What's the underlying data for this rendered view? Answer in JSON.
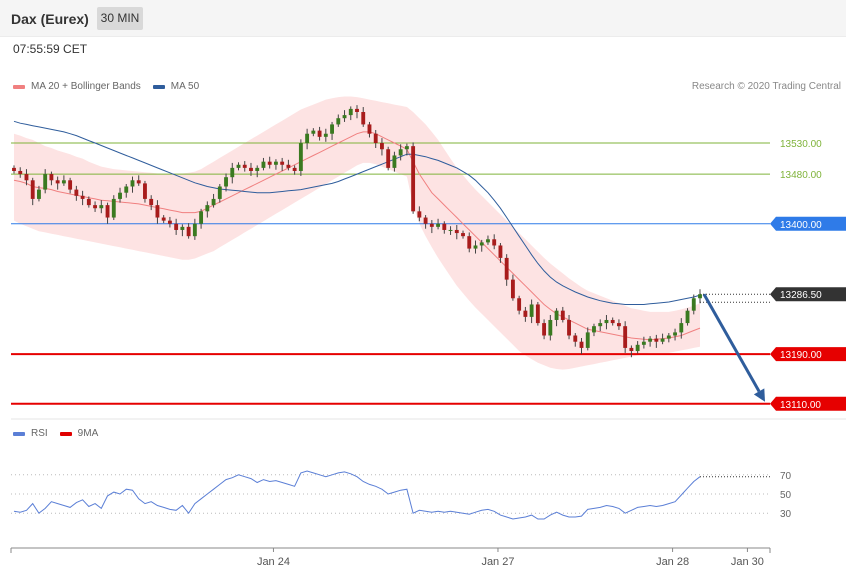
{
  "header": {
    "title": "Dax (Eurex)",
    "timeframe": "30 MIN"
  },
  "timestamp": "07:55:59 CET",
  "legend": {
    "price": [
      {
        "label": "MA 20 + Bollinger Bands",
        "color": "#f08080"
      },
      {
        "label": "MA 50",
        "color": "#2f5d9c"
      }
    ],
    "rsi": [
      {
        "label": "RSI",
        "color": "#5b7fd6"
      },
      {
        "label": "9MA",
        "color": "#e00000"
      }
    ]
  },
  "copyright": "Research © 2020 Trading Central",
  "chart_data": {
    "type": "candlestick",
    "price_range": [
      13100,
      13580
    ],
    "levels": [
      {
        "value": 13530.0,
        "label": "13530.00",
        "kind": "resistance",
        "color": "#7fb33a"
      },
      {
        "value": 13480.0,
        "label": "13480.00",
        "kind": "resistance",
        "color": "#7fb33a"
      },
      {
        "value": 13400.0,
        "label": "13400.00",
        "kind": "pivot",
        "color": "#2f7be8"
      },
      {
        "value": 13286.5,
        "label": "13286.50",
        "kind": "last-price",
        "color": "#333333"
      },
      {
        "value": 13190.0,
        "label": "13190.00",
        "kind": "support",
        "color": "#e60000"
      },
      {
        "value": 13110.0,
        "label": "13110.00",
        "kind": "support",
        "color": "#e60000"
      }
    ],
    "closes": [
      13485,
      13480,
      13470,
      13440,
      13455,
      13480,
      13470,
      13465,
      13470,
      13455,
      13445,
      13440,
      13430,
      13425,
      13430,
      13410,
      13440,
      13450,
      13460,
      13470,
      13465,
      13440,
      13430,
      13410,
      13405,
      13400,
      13390,
      13395,
      13380,
      13400,
      13420,
      13430,
      13440,
      13460,
      13475,
      13490,
      13495,
      13490,
      13485,
      13490,
      13500,
      13495,
      13500,
      13495,
      13490,
      13485,
      13530,
      13545,
      13550,
      13540,
      13545,
      13560,
      13570,
      13575,
      13585,
      13580,
      13560,
      13545,
      13530,
      13520,
      13490,
      13510,
      13520,
      13525,
      13420,
      13410,
      13400,
      13395,
      13400,
      13390,
      13390,
      13385,
      13380,
      13360,
      13365,
      13370,
      13375,
      13365,
      13345,
      13310,
      13280,
      13260,
      13250,
      13270,
      13240,
      13220,
      13245,
      13260,
      13245,
      13220,
      13210,
      13200,
      13225,
      13235,
      13240,
      13245,
      13240,
      13235,
      13200,
      13195,
      13205,
      13210,
      13215,
      13210,
      13215,
      13220,
      13225,
      13240,
      13260,
      13280,
      13286.5
    ],
    "ma20": [
      13470,
      13468,
      13465,
      13460,
      13458,
      13457,
      13455,
      13452,
      13450,
      13448,
      13446,
      13444,
      13442,
      13440,
      13438,
      13437,
      13436,
      13435,
      13434,
      13433,
      13432,
      13430,
      13428,
      13426,
      13424,
      13422,
      13420,
      13418,
      13418,
      13418,
      13420,
      13425,
      13430,
      13435,
      13440,
      13445,
      13450,
      13455,
      13460,
      13465,
      13470,
      13475,
      13480,
      13485,
      13490,
      13495,
      13500,
      13505,
      13510,
      13515,
      13520,
      13525,
      13530,
      13535,
      13540,
      13545,
      13548,
      13548,
      13545,
      13540,
      13535,
      13530,
      13525,
      13520,
      13500,
      13480,
      13465,
      13450,
      13440,
      13430,
      13420,
      13410,
      13400,
      13390,
      13380,
      13370,
      13360,
      13350,
      13340,
      13330,
      13320,
      13310,
      13300,
      13290,
      13280,
      13270,
      13262,
      13255,
      13250,
      13245,
      13240,
      13235,
      13230,
      13228,
      13226,
      13224,
      13222,
      13220,
      13218,
      13216,
      13215,
      13214,
      13213,
      13214,
      13215,
      13216,
      13218,
      13220,
      13224,
      13228,
      13232
    ],
    "bb_upper": [
      13545,
      13542,
      13538,
      13535,
      13530,
      13525,
      13522,
      13518,
      13515,
      13512,
      13508,
      13505,
      13500,
      13496,
      13492,
      13490,
      13488,
      13487,
      13486,
      13485,
      13484,
      13483,
      13482,
      13481,
      13480,
      13480,
      13480,
      13481,
      13482,
      13484,
      13488,
      13494,
      13500,
      13506,
      13512,
      13518,
      13524,
      13530,
      13536,
      13542,
      13548,
      13554,
      13560,
      13566,
      13572,
      13578,
      13584,
      13588,
      13592,
      13596,
      13600,
      13602,
      13604,
      13605,
      13605,
      13604,
      13602,
      13600,
      13598,
      13596,
      13594,
      13592,
      13590,
      13588,
      13580,
      13570,
      13560,
      13548,
      13535,
      13520,
      13505,
      13490,
      13478,
      13466,
      13455,
      13445,
      13435,
      13425,
      13415,
      13405,
      13395,
      13385,
      13375,
      13365,
      13355,
      13345,
      13336,
      13328,
      13320,
      13312,
      13305,
      13298,
      13292,
      13288,
      13284,
      13280,
      13276,
      13272,
      13268,
      13264,
      13262,
      13260,
      13258,
      13258,
      13258,
      13258,
      13260,
      13262,
      13265,
      13268,
      13272
    ],
    "bb_lower": [
      13405,
      13400,
      13396,
      13392,
      13388,
      13386,
      13384,
      13382,
      13380,
      13378,
      13376,
      13374,
      13372,
      13370,
      13368,
      13366,
      13364,
      13362,
      13360,
      13358,
      13356,
      13354,
      13352,
      13350,
      13348,
      13346,
      13344,
      13342,
      13342,
      13344,
      13348,
      13352,
      13356,
      13362,
      13368,
      13374,
      13380,
      13386,
      13392,
      13398,
      13404,
      13410,
      13416,
      13422,
      13428,
      13434,
      13440,
      13446,
      13452,
      13458,
      13464,
      13470,
      13476,
      13482,
      13488,
      13494,
      13498,
      13498,
      13496,
      13492,
      13488,
      13484,
      13480,
      13476,
      13430,
      13400,
      13380,
      13362,
      13345,
      13330,
      13315,
      13300,
      13288,
      13276,
      13265,
      13255,
      13245,
      13235,
      13225,
      13215,
      13205,
      13195,
      13188,
      13182,
      13176,
      13172,
      13168,
      13166,
      13165,
      13166,
      13168,
      13170,
      13172,
      13174,
      13176,
      13178,
      13180,
      13182,
      13184,
      13186,
      13188,
      13190,
      13192,
      13192,
      13192,
      13192,
      13194,
      13196,
      13198,
      13200,
      13202
    ],
    "ma50": [
      13565,
      13562,
      13560,
      13558,
      13556,
      13554,
      13552,
      13550,
      13548,
      13545,
      13542,
      13538,
      13534,
      13530,
      13526,
      13522,
      13518,
      13514,
      13510,
      13506,
      13502,
      13498,
      13494,
      13490,
      13486,
      13482,
      13478,
      13474,
      13470,
      13466,
      13463,
      13460,
      13458,
      13456,
      13455,
      13454,
      13453,
      13452,
      13451,
      13450,
      13450,
      13450,
      13451,
      13452,
      13453,
      13454,
      13455,
      13457,
      13459,
      13461,
      13463,
      13465,
      13468,
      13472,
      13476,
      13480,
      13484,
      13488,
      13492,
      13496,
      13500,
      13504,
      13508,
      13512,
      13512,
      13510,
      13508,
      13505,
      13502,
      13498,
      13494,
      13490,
      13484,
      13478,
      13470,
      13460,
      13450,
      13438,
      13425,
      13410,
      13395,
      13380,
      13365,
      13350,
      13336,
      13324,
      13314,
      13306,
      13300,
      13295,
      13290,
      13286,
      13282,
      13279,
      13276,
      13274,
      13272,
      13271,
      13270,
      13270,
      13270,
      13270,
      13271,
      13272,
      13273,
      13274,
      13276,
      13278,
      13280,
      13282,
      13285
    ],
    "rsi_range": [
      0,
      100
    ],
    "rsi_levels": [
      70,
      50,
      30
    ],
    "rsi": [
      32,
      31,
      33,
      40,
      30,
      35,
      42,
      40,
      38,
      36,
      41,
      44,
      37,
      40,
      35,
      48,
      52,
      50,
      55,
      54,
      45,
      40,
      42,
      38,
      36,
      34,
      33,
      38,
      30,
      40,
      45,
      50,
      55,
      60,
      65,
      67,
      70,
      68,
      66,
      62,
      65,
      63,
      64,
      62,
      60,
      58,
      72,
      74,
      72,
      70,
      68,
      70,
      72,
      73,
      71,
      68,
      63,
      60,
      58,
      55,
      50,
      52,
      54,
      55,
      30,
      33,
      32,
      31,
      32,
      31,
      32,
      31,
      30,
      29,
      31,
      33,
      34,
      32,
      28,
      26,
      24,
      25,
      26,
      28,
      24,
      24,
      28,
      31,
      28,
      26,
      26,
      27,
      34,
      35,
      36,
      38,
      37,
      35,
      30,
      33,
      36,
      37,
      38,
      37,
      38,
      40,
      42,
      49,
      56,
      63,
      68
    ],
    "x_labels": [
      {
        "label": "Jan 24",
        "index": 40
      },
      {
        "label": "Jan 27",
        "index": 76
      },
      {
        "label": "Jan 28",
        "index": 104
      },
      {
        "label": "Jan 30",
        "index": 116
      }
    ],
    "projection": {
      "from": 13286.5,
      "to": 13110.0,
      "color": "#2f5d9c"
    }
  }
}
